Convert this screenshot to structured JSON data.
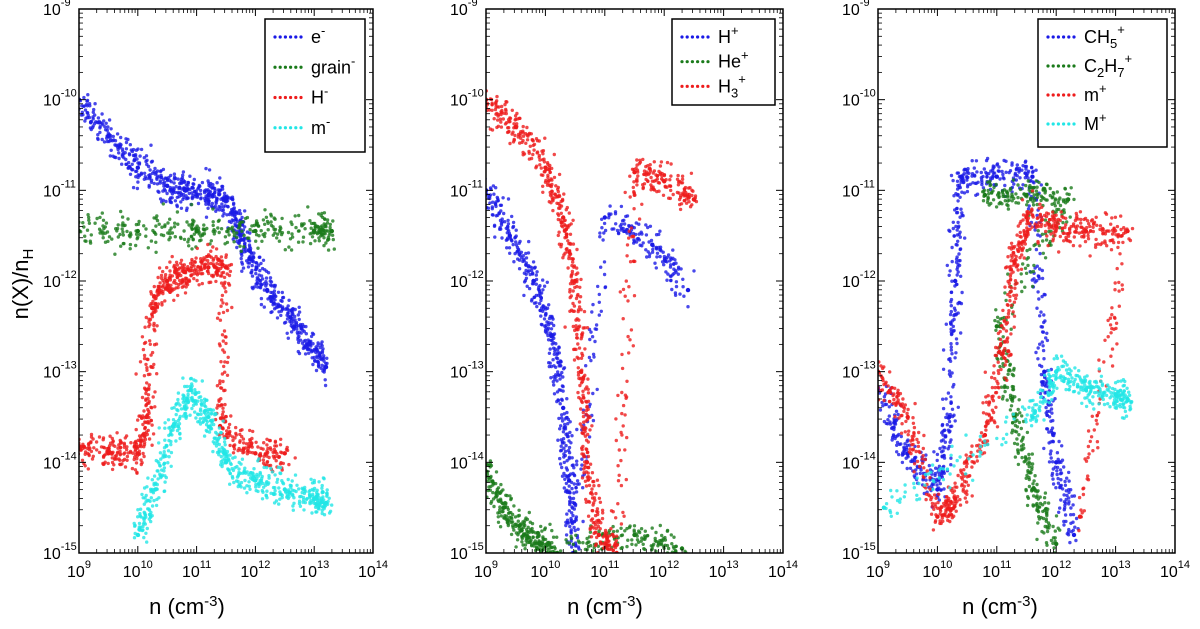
{
  "figure": {
    "ylabel": "n(X)/n",
    "ylabel_sub": "H",
    "xlabel": "n (cm",
    "xlabel_sup": "-3",
    "xlabel_end": ")"
  },
  "chart_data": [
    {
      "type": "scatter",
      "xscale": "log",
      "yscale": "log",
      "xlim_exp": [
        9,
        14
      ],
      "ylim_exp": [
        -15,
        -9
      ],
      "x_ticks": [
        9,
        10,
        11,
        12,
        13,
        14
      ],
      "y_ticks": [
        -15,
        -14,
        -13,
        -12,
        -11,
        -10,
        -9
      ],
      "legend_position": "top-right",
      "series": [
        {
          "name": "e",
          "name_sup": "-",
          "name_sub": "",
          "name_tail": "",
          "color": "#1a1ae6",
          "points": [
            [
              9.0,
              -10.0
            ],
            [
              9.5,
              -10.4
            ],
            [
              10.0,
              -10.75
            ],
            [
              10.5,
              -10.95
            ],
            [
              10.8,
              -11.0
            ],
            [
              11.2,
              -11.05
            ],
            [
              11.5,
              -11.1
            ],
            [
              11.7,
              -11.4
            ],
            [
              11.9,
              -11.75
            ],
            [
              12.2,
              -12.1
            ],
            [
              12.6,
              -12.4
            ],
            [
              12.9,
              -12.7
            ],
            [
              13.2,
              -12.95
            ]
          ]
        },
        {
          "name": "grain",
          "name_sup": "-",
          "name_sub": "",
          "name_tail": "",
          "color": "#1a7a1a",
          "points": [
            [
              9.0,
              -11.45
            ],
            [
              10.0,
              -11.45
            ],
            [
              11.0,
              -11.45
            ],
            [
              12.0,
              -11.45
            ],
            [
              13.0,
              -11.45
            ],
            [
              13.3,
              -11.45
            ]
          ]
        },
        {
          "name": "H",
          "name_sup": "-",
          "name_sub": "",
          "name_tail": "",
          "color": "#ee1c1c",
          "points": [
            [
              9.0,
              -13.85
            ],
            [
              9.5,
              -13.9
            ],
            [
              10.0,
              -13.9
            ],
            [
              10.15,
              -13.5
            ],
            [
              10.25,
              -12.3
            ],
            [
              10.5,
              -12.0
            ],
            [
              10.8,
              -11.9
            ],
            [
              11.2,
              -11.85
            ],
            [
              11.5,
              -11.85
            ],
            [
              11.4,
              -13.6
            ],
            [
              12.0,
              -13.9
            ],
            [
              12.5,
              -13.9
            ]
          ]
        },
        {
          "name": "m",
          "name_sup": "-",
          "name_sub": "",
          "name_tail": "",
          "color": "#22e6e6",
          "points": [
            [
              10.0,
              -14.8
            ],
            [
              10.3,
              -14.3
            ],
            [
              10.6,
              -13.6
            ],
            [
              10.9,
              -13.2
            ],
            [
              11.2,
              -13.5
            ],
            [
              11.5,
              -14.0
            ],
            [
              12.0,
              -14.2
            ],
            [
              12.5,
              -14.3
            ],
            [
              13.0,
              -14.4
            ],
            [
              13.2,
              -14.45
            ]
          ]
        }
      ]
    },
    {
      "type": "scatter",
      "xscale": "log",
      "yscale": "log",
      "xlim_exp": [
        9,
        14
      ],
      "ylim_exp": [
        -15,
        -9
      ],
      "x_ticks": [
        9,
        10,
        11,
        12,
        13,
        14
      ],
      "y_ticks": [
        -15,
        -14,
        -13,
        -12,
        -11,
        -10,
        -9
      ],
      "legend_position": "top-right",
      "series": [
        {
          "name": "H",
          "name_sup": "+",
          "name_sub": "",
          "name_tail": "",
          "color": "#1a1ae6",
          "points": [
            [
              9.0,
              -11.0
            ],
            [
              9.4,
              -11.5
            ],
            [
              9.8,
              -12.0
            ],
            [
              10.1,
              -12.6
            ],
            [
              10.3,
              -13.4
            ],
            [
              10.4,
              -14.2
            ],
            [
              10.5,
              -15.0
            ],
            [
              11.0,
              -11.3
            ],
            [
              11.8,
              -11.6
            ],
            [
              12.4,
              -12.1
            ]
          ]
        },
        {
          "name": "He",
          "name_sup": "+",
          "name_sub": "",
          "name_tail": "",
          "color": "#1a7a1a",
          "points": [
            [
              9.0,
              -14.1
            ],
            [
              9.3,
              -14.5
            ],
            [
              9.6,
              -14.75
            ],
            [
              9.9,
              -14.9
            ],
            [
              10.2,
              -15.0
            ],
            [
              11.5,
              -14.8
            ],
            [
              12.3,
              -14.95
            ]
          ]
        },
        {
          "name": "H",
          "name_sup": "+",
          "name_sub": "3",
          "name_tail": "",
          "color": "#ee1c1c",
          "points": [
            [
              9.0,
              -10.0
            ],
            [
              9.5,
              -10.3
            ],
            [
              10.0,
              -10.75
            ],
            [
              10.3,
              -11.3
            ],
            [
              10.5,
              -12.0
            ],
            [
              10.6,
              -13.0
            ],
            [
              10.7,
              -14.0
            ],
            [
              10.9,
              -14.8
            ],
            [
              11.2,
              -15.0
            ],
            [
              11.5,
              -10.8
            ],
            [
              12.0,
              -10.9
            ],
            [
              12.5,
              -11.1
            ]
          ]
        }
      ]
    },
    {
      "type": "scatter",
      "xscale": "log",
      "yscale": "log",
      "xlim_exp": [
        9,
        14
      ],
      "ylim_exp": [
        -15,
        -9
      ],
      "x_ticks": [
        9,
        10,
        11,
        12,
        13,
        14
      ],
      "y_ticks": [
        -15,
        -14,
        -13,
        -12,
        -11,
        -10,
        -9
      ],
      "legend_position": "top-right",
      "series": [
        {
          "name": "CH",
          "name_sup": "+",
          "name_sub": "5",
          "name_tail": "",
          "color": "#1a1ae6",
          "points": [
            [
              9.0,
              -13.2
            ],
            [
              9.5,
              -13.9
            ],
            [
              10.0,
              -14.3
            ],
            [
              10.2,
              -13.5
            ],
            [
              10.3,
              -12.0
            ],
            [
              10.4,
              -10.85
            ],
            [
              11.0,
              -10.85
            ],
            [
              11.6,
              -10.85
            ],
            [
              11.8,
              -13.0
            ],
            [
              12.0,
              -14.0
            ],
            [
              12.3,
              -14.8
            ]
          ]
        },
        {
          "name": "C",
          "name_sup": "+",
          "name_sub": "2",
          "name_tail": "H",
          "name_sub2": "7",
          "color": "#1a7a1a",
          "points": [
            [
              10.8,
              -11.05
            ],
            [
              11.5,
              -11.05
            ],
            [
              12.2,
              -11.1
            ],
            [
              11.0,
              -12.5
            ],
            [
              11.3,
              -13.5
            ],
            [
              11.6,
              -14.3
            ],
            [
              12.0,
              -14.9
            ]
          ]
        },
        {
          "name": "m",
          "name_sup": "+",
          "name_sub": "",
          "name_tail": "",
          "color": "#ee1c1c",
          "points": [
            [
              9.0,
              -13.0
            ],
            [
              9.5,
              -13.5
            ],
            [
              10.0,
              -14.6
            ],
            [
              10.3,
              -14.4
            ],
            [
              10.8,
              -13.7
            ],
            [
              11.1,
              -12.8
            ],
            [
              11.3,
              -11.8
            ],
            [
              11.5,
              -11.3
            ],
            [
              12.0,
              -11.4
            ],
            [
              12.5,
              -11.45
            ],
            [
              13.2,
              -11.45
            ],
            [
              12.4,
              -14.6
            ]
          ]
        },
        {
          "name": "M",
          "name_sup": "+",
          "name_sub": "",
          "name_tail": "",
          "color": "#22e6e6",
          "points": [
            [
              9.1,
              -14.5
            ],
            [
              11.6,
              -13.5
            ],
            [
              12.0,
              -13.0
            ],
            [
              12.5,
              -13.2
            ],
            [
              13.0,
              -13.25
            ],
            [
              13.2,
              -13.3
            ]
          ]
        }
      ]
    }
  ]
}
